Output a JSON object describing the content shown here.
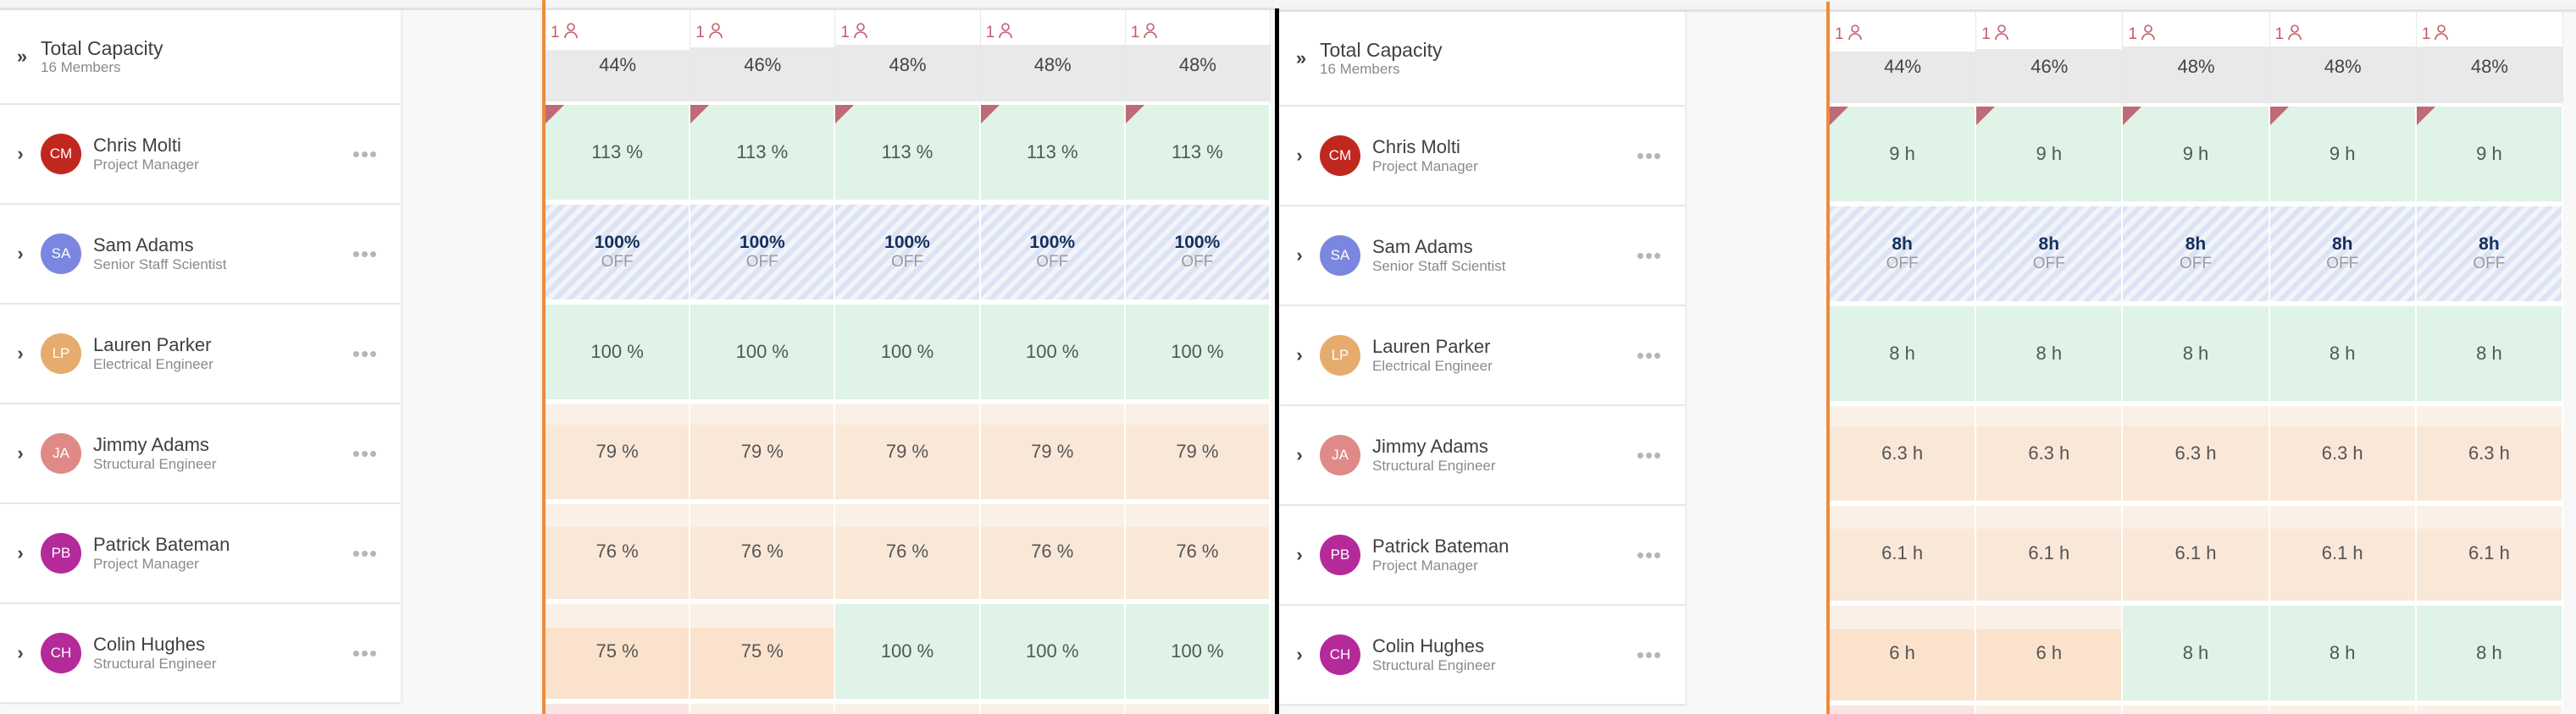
{
  "colors": {
    "today_line": "#ee8b3a",
    "divider": "#000000",
    "green_cell": "#dff3e7",
    "orange_cell": "#f9e8d8",
    "off_hatch": "#dbe3f4",
    "flag": "#c06a75",
    "badge": "#c55b68"
  },
  "total": {
    "title": "Total Capacity",
    "subtitle": "16 Members",
    "expand_icon": "double-chevron-right-icon",
    "columns": [
      {
        "badge_count": "1",
        "badge_icon": "person-icon",
        "label": "44%",
        "value": 44
      },
      {
        "badge_count": "1",
        "badge_icon": "person-icon",
        "label": "46%",
        "value": 46
      },
      {
        "badge_count": "1",
        "badge_icon": "person-icon",
        "label": "48%",
        "value": 48
      },
      {
        "badge_count": "1",
        "badge_icon": "person-icon",
        "label": "48%",
        "value": 48
      },
      {
        "badge_count": "1",
        "badge_icon": "person-icon",
        "label": "48%",
        "value": 48
      }
    ]
  },
  "members": [
    {
      "initials": "CM",
      "name": "Chris Molti",
      "role": "Project Manager",
      "avatar_color": "#c0281f",
      "percent_cells": [
        {
          "text": "113 %",
          "status": "green",
          "flag": true,
          "value": 113
        },
        {
          "text": "113 %",
          "status": "green",
          "flag": true,
          "value": 113
        },
        {
          "text": "113 %",
          "status": "green",
          "flag": true,
          "value": 113
        },
        {
          "text": "113 %",
          "status": "green",
          "flag": true,
          "value": 113
        },
        {
          "text": "113 %",
          "status": "green",
          "flag": true,
          "value": 113
        }
      ],
      "hour_cells": [
        {
          "text": "9 h",
          "status": "green",
          "flag": true,
          "value": 113
        },
        {
          "text": "9 h",
          "status": "green",
          "flag": true,
          "value": 113
        },
        {
          "text": "9 h",
          "status": "green",
          "flag": true,
          "value": 113
        },
        {
          "text": "9 h",
          "status": "green",
          "flag": true,
          "value": 113
        },
        {
          "text": "9 h",
          "status": "green",
          "flag": true,
          "value": 113
        }
      ]
    },
    {
      "initials": "SA",
      "name": "Sam Adams",
      "role": "Senior Staff Scientist",
      "avatar_color": "#7b86e0",
      "percent_cells": [
        {
          "text": "100%",
          "sub": "OFF",
          "status": "off",
          "value": 100
        },
        {
          "text": "100%",
          "sub": "OFF",
          "status": "off",
          "value": 100
        },
        {
          "text": "100%",
          "sub": "OFF",
          "status": "off",
          "value": 100
        },
        {
          "text": "100%",
          "sub": "OFF",
          "status": "off",
          "value": 100
        },
        {
          "text": "100%",
          "sub": "OFF",
          "status": "off",
          "value": 100
        }
      ],
      "hour_cells": [
        {
          "text": "8h",
          "sub": "OFF",
          "status": "off",
          "value": 100
        },
        {
          "text": "8h",
          "sub": "OFF",
          "status": "off",
          "value": 100
        },
        {
          "text": "8h",
          "sub": "OFF",
          "status": "off",
          "value": 100
        },
        {
          "text": "8h",
          "sub": "OFF",
          "status": "off",
          "value": 100
        },
        {
          "text": "8h",
          "sub": "OFF",
          "status": "off",
          "value": 100
        }
      ]
    },
    {
      "initials": "LP",
      "name": "Lauren Parker",
      "role": "Electrical Engineer",
      "avatar_color": "#e6ac6d",
      "percent_cells": [
        {
          "text": "100 %",
          "status": "green",
          "value": 100
        },
        {
          "text": "100 %",
          "status": "green",
          "value": 100
        },
        {
          "text": "100 %",
          "status": "green",
          "value": 100
        },
        {
          "text": "100 %",
          "status": "green",
          "value": 100
        },
        {
          "text": "100 %",
          "status": "green",
          "value": 100
        }
      ],
      "hour_cells": [
        {
          "text": "8 h",
          "status": "green",
          "value": 100
        },
        {
          "text": "8 h",
          "status": "green",
          "value": 100
        },
        {
          "text": "8 h",
          "status": "green",
          "value": 100
        },
        {
          "text": "8 h",
          "status": "green",
          "value": 100
        },
        {
          "text": "8 h",
          "status": "green",
          "value": 100
        }
      ]
    },
    {
      "initials": "JA",
      "name": "Jimmy Adams",
      "role": "Structural Engineer",
      "avatar_color": "#e08a87",
      "percent_cells": [
        {
          "text": "79 %",
          "status": "orange",
          "value": 79
        },
        {
          "text": "79 %",
          "status": "orange",
          "value": 79
        },
        {
          "text": "79 %",
          "status": "orange",
          "value": 79
        },
        {
          "text": "79 %",
          "status": "orange",
          "value": 79
        },
        {
          "text": "79 %",
          "status": "orange",
          "value": 79
        }
      ],
      "hour_cells": [
        {
          "text": "6.3 h",
          "status": "orange",
          "value": 79
        },
        {
          "text": "6.3 h",
          "status": "orange",
          "value": 79
        },
        {
          "text": "6.3 h",
          "status": "orange",
          "value": 79
        },
        {
          "text": "6.3 h",
          "status": "orange",
          "value": 79
        },
        {
          "text": "6.3 h",
          "status": "orange",
          "value": 79
        }
      ]
    },
    {
      "initials": "PB",
      "name": "Patrick Bateman",
      "role": "Project Manager",
      "avatar_color": "#b52a9b",
      "percent_cells": [
        {
          "text": "76 %",
          "status": "orange",
          "value": 76
        },
        {
          "text": "76 %",
          "status": "orange",
          "value": 76
        },
        {
          "text": "76 %",
          "status": "orange",
          "value": 76
        },
        {
          "text": "76 %",
          "status": "orange",
          "value": 76
        },
        {
          "text": "76 %",
          "status": "orange",
          "value": 76
        }
      ],
      "hour_cells": [
        {
          "text": "6.1 h",
          "status": "orange",
          "value": 76
        },
        {
          "text": "6.1 h",
          "status": "orange",
          "value": 76
        },
        {
          "text": "6.1 h",
          "status": "orange",
          "value": 76
        },
        {
          "text": "6.1 h",
          "status": "orange",
          "value": 76
        },
        {
          "text": "6.1 h",
          "status": "orange",
          "value": 76
        }
      ]
    },
    {
      "initials": "CH",
      "name": "Colin Hughes",
      "role": "Structural Engineer",
      "avatar_color": "#b52a9b",
      "percent_cells": [
        {
          "text": "75 %",
          "status": "orange-deep",
          "value": 75
        },
        {
          "text": "75 %",
          "status": "orange-deep",
          "value": 75
        },
        {
          "text": "100 %",
          "status": "green",
          "value": 100
        },
        {
          "text": "100 %",
          "status": "green",
          "value": 100
        },
        {
          "text": "100 %",
          "status": "green",
          "value": 100
        }
      ],
      "hour_cells": [
        {
          "text": "6 h",
          "status": "orange-deep",
          "value": 75
        },
        {
          "text": "6 h",
          "status": "orange-deep",
          "value": 75
        },
        {
          "text": "8 h",
          "status": "green",
          "value": 100
        },
        {
          "text": "8 h",
          "status": "green",
          "value": 100
        },
        {
          "text": "8 h",
          "status": "green",
          "value": 100
        }
      ]
    }
  ],
  "partial_next_row": [
    "pink",
    "orange",
    "orange",
    "orange",
    "orange"
  ],
  "row_menu_icon": "more-horizontal-icon",
  "row_expand_icon": "chevron-right-icon"
}
